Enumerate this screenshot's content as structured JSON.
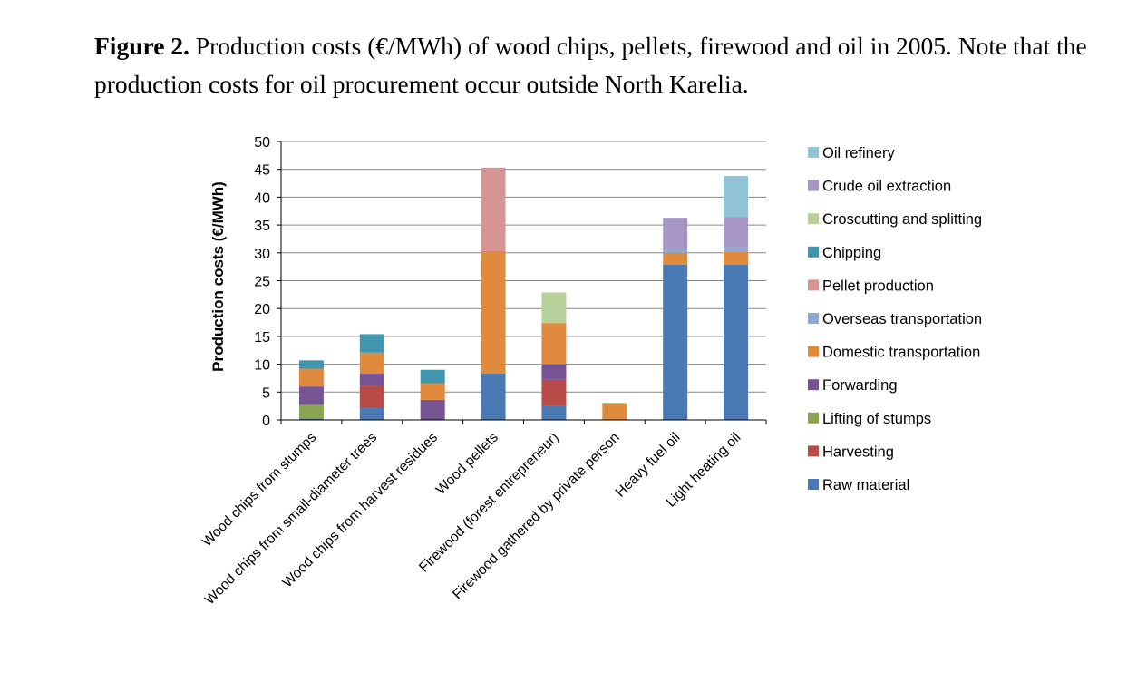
{
  "caption": {
    "label": "Figure 2.",
    "text": " Production costs (€/MWh) of wood chips, pellets, firewood and oil in 2005. Note that the production costs for oil procurement occur outside North Karelia."
  },
  "chart_data": {
    "type": "bar",
    "stacked": true,
    "ylabel": "Production costs (€/MWh)",
    "ylim": [
      0,
      50
    ],
    "yticks": [
      "0",
      "5",
      "10",
      "15",
      "20",
      "25",
      "30",
      "35",
      "40",
      "45",
      "50"
    ],
    "grid": true,
    "legend_position": "right",
    "categories": [
      "Wood chips from stumps",
      "Wood chips from small-diameter trees",
      "Wood chips from harvest residues",
      "Wood pellets",
      "Firewood (forest entrepreneur)",
      "Firewood gathered by private person",
      "Heavy fuel oil",
      "Light heating oil"
    ],
    "series": [
      {
        "name": "Raw material",
        "color": "#4a7ab3",
        "values": [
          0.3,
          2.2,
          0,
          8.3,
          2.6,
          0,
          27.9,
          27.9
        ]
      },
      {
        "name": "Harvesting",
        "color": "#b84a48",
        "values": [
          0,
          3.9,
          0,
          0,
          4.6,
          0,
          0,
          0
        ]
      },
      {
        "name": "Lifting of stumps",
        "color": "#8aa552",
        "values": [
          2.4,
          0,
          0,
          0,
          0,
          0,
          0,
          0
        ]
      },
      {
        "name": "Forwarding",
        "color": "#765494",
        "values": [
          3.3,
          2.2,
          3.6,
          0,
          2.8,
          0,
          0,
          0
        ]
      },
      {
        "name": "Domestic transportation",
        "color": "#df8a3d",
        "values": [
          3.2,
          3.8,
          3.0,
          22.0,
          7.4,
          2.8,
          2.1,
          2.3
        ]
      },
      {
        "name": "Overseas transportation",
        "color": "#8fa9d3",
        "values": [
          0,
          0,
          0,
          0,
          0,
          0,
          0.7,
          0.8
        ]
      },
      {
        "name": "Pellet production",
        "color": "#d69593",
        "values": [
          0,
          0,
          0,
          15.0,
          0,
          0,
          0,
          0
        ]
      },
      {
        "name": "Chipping",
        "color": "#3f96ae",
        "values": [
          1.5,
          3.3,
          2.4,
          0,
          0,
          0,
          0,
          0
        ]
      },
      {
        "name": "Croscutting and splitting",
        "color": "#b6d19b",
        "values": [
          0,
          0,
          0,
          0,
          5.5,
          0.3,
          0,
          0
        ]
      },
      {
        "name": "Crude oil extraction",
        "color": "#a696c5",
        "values": [
          0,
          0,
          0,
          0,
          0,
          0,
          5.6,
          5.4
        ]
      },
      {
        "name": "Oil refinery",
        "color": "#92c4d8",
        "values": [
          0,
          0,
          0,
          0,
          0,
          0,
          0,
          7.4
        ]
      }
    ],
    "legend_order": [
      "Oil refinery",
      "Crude oil extraction",
      "Croscutting and splitting",
      "Chipping",
      "Pellet production",
      "Overseas transportation",
      "Domestic transportation",
      "Forwarding",
      "Lifting of stumps",
      "Harvesting",
      "Raw material"
    ]
  }
}
